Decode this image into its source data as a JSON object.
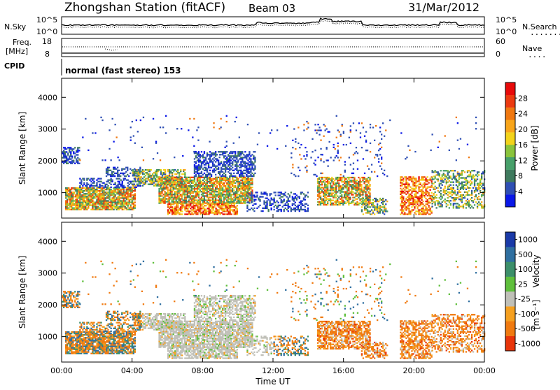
{
  "header": {
    "station": "Zhongshan Station (fitACF)",
    "beam": "Beam 03",
    "date": "31/Mar/2012"
  },
  "noise_panel": {
    "left_label": "N.Sky",
    "right_label": "N.Search",
    "left_ticks": [
      "10^5",
      "10^0"
    ],
    "right_ticks": [
      "10^5",
      "10^0"
    ],
    "dotted_key": "........"
  },
  "freq_panel": {
    "left_label_1": "Freq.",
    "left_label_2": "[MHz]",
    "right_label": "Nave",
    "left_ticks": [
      "18",
      "8"
    ],
    "right_ticks": [
      "60",
      "0"
    ],
    "dotted_key": "...."
  },
  "cpid": {
    "label": "CPID",
    "value": "normal (fast stereo) 153"
  },
  "chart_data": [
    {
      "type": "heatmap",
      "name": "power",
      "ylabel": "Slant Range [km]",
      "ylim": [
        200,
        4600
      ],
      "yticks": [
        "1000",
        "2000",
        "3000",
        "4000"
      ],
      "xlim": [
        0,
        24
      ],
      "colorbar": {
        "label": "Power [dB]",
        "ticks": [
          "4",
          "8",
          "12",
          "16",
          "20",
          "24",
          "28"
        ],
        "colors": [
          "#0a18e8",
          "#2f4fb4",
          "#3f7a5e",
          "#47a06a",
          "#8ac43c",
          "#f3d31a",
          "#f8a51a",
          "#f07810",
          "#ec3a10",
          "#e80a0a"
        ]
      }
    },
    {
      "type": "heatmap",
      "name": "velocity",
      "ylabel": "Slant Range [km]",
      "ylim": [
        200,
        4600
      ],
      "yticks": [
        "1000",
        "2000",
        "3000",
        "4000"
      ],
      "xlim": [
        0,
        24
      ],
      "colorbar": {
        "label": "Velocity",
        "units": "[m s⁻¹]",
        "ticks": [
          "1000",
          "500",
          "100",
          "25",
          "-25",
          "-100",
          "-500",
          "-1000"
        ],
        "colors": [
          "#1a3aa8",
          "#2f6fa0",
          "#3c8f6a",
          "#5fbf3c",
          "#c0c0b8",
          "#f5a020",
          "#f07a10",
          "#e8350a"
        ]
      }
    }
  ],
  "x_axis": {
    "label": "Time UT",
    "ticks": [
      "00:00",
      "04:00",
      "08:00",
      "12:00",
      "16:00",
      "20:00",
      "00:00"
    ]
  }
}
